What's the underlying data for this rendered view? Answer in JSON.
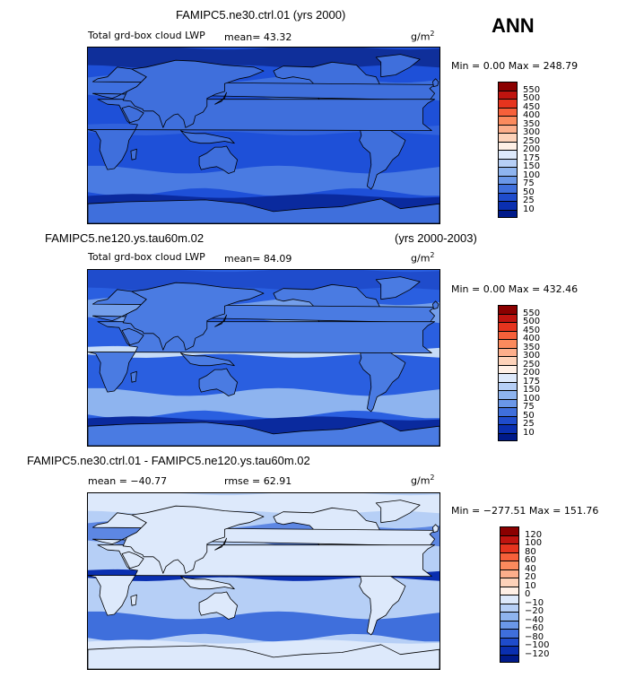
{
  "season": "ANN",
  "panels": [
    {
      "id": "p1",
      "case_title": "FAMIPC5.ne30.ctrl.01 (yrs 2000)",
      "years": "",
      "variable": "Total grd-box cloud LWP",
      "stat_text": "mean=   43.32",
      "rmse_text": "",
      "units": "g/m",
      "units_exp": "2",
      "minmax": "Min =   0.00 Max = 248.79",
      "colorbar": {
        "labels": [
          "550",
          "500",
          "450",
          "400",
          "350",
          "300",
          "250",
          "200",
          "175",
          "150",
          "100",
          "75",
          "50",
          "25",
          "10"
        ],
        "colors": [
          "#8b0000",
          "#c0140f",
          "#e6341e",
          "#f6603a",
          "#fb8a5d",
          "#fcae8b",
          "#fdd2b9",
          "#fff0e6",
          "#dde9fb",
          "#b6cff6",
          "#8eb4ef",
          "#6a97e8",
          "#3f6fdc",
          "#1f4ccc",
          "#0a2fb0",
          "#001a8a"
        ]
      },
      "field": {
        "ocean": "#1e50d8",
        "land": "#3f6fdc",
        "tropic_band": "#3162dc",
        "storm_band": "#4a7be2",
        "antarctic": "#0a2a9e",
        "arctic": "#0f2f9a"
      }
    },
    {
      "id": "p2",
      "case_title": "FAMIPC5.ne120.ys.tau60m.02",
      "years": "(yrs 2000-2003)",
      "variable": "Total grd-box cloud LWP",
      "stat_text": "mean=   84.09",
      "rmse_text": "",
      "units": "g/m",
      "units_exp": "2",
      "minmax": "Min =   0.00 Max = 432.46",
      "colorbar": {
        "labels": [
          "550",
          "500",
          "450",
          "400",
          "350",
          "300",
          "250",
          "200",
          "175",
          "150",
          "100",
          "75",
          "50",
          "25",
          "10"
        ],
        "colors": [
          "#8b0000",
          "#c0140f",
          "#e6341e",
          "#f6603a",
          "#fb8a5d",
          "#fcae8b",
          "#fdd2b9",
          "#fff0e6",
          "#dde9fb",
          "#b6cff6",
          "#8eb4ef",
          "#6a97e8",
          "#3f6fdc",
          "#1f4ccc",
          "#0a2fb0",
          "#001a8a"
        ]
      },
      "field": {
        "ocean": "#2a5fe0",
        "land": "#4a7be2",
        "tropic_band": "#c6dcf8",
        "storm_band": "#8eb4ef",
        "antarctic": "#0a2a9e",
        "arctic": "#1f4ccc"
      }
    },
    {
      "id": "p3",
      "case_title": "FAMIPC5.ne30.ctrl.01 - FAMIPC5.ne120.ys.tau60m.02",
      "years": "",
      "variable": "",
      "stat_text": "mean = −40.77",
      "rmse_text": "rmse =   62.91",
      "units": "g/m",
      "units_exp": "2",
      "minmax": "Min = −277.51 Max = 151.76",
      "colorbar": {
        "labels": [
          "120",
          "100",
          "80",
          "60",
          "40",
          "20",
          "10",
          "0",
          "−10",
          "−20",
          "−40",
          "−60",
          "−80",
          "−100",
          "−120"
        ],
        "colors": [
          "#8b0000",
          "#c0140f",
          "#e6341e",
          "#f6603a",
          "#fb8a5d",
          "#fcae8b",
          "#fdd2b9",
          "#fff0e6",
          "#dde9fb",
          "#b6cff6",
          "#8eb4ef",
          "#6a97e8",
          "#3f6fdc",
          "#1f4ccc",
          "#0a2fb0",
          "#001a8a"
        ]
      },
      "field": {
        "ocean": "#b6cff6",
        "land": "#dde9fb",
        "tropic_band": "#0a2fb0",
        "storm_band": "#3f6fdc",
        "antarctic": "#dde9fb",
        "arctic": "#dde9fb"
      }
    }
  ]
}
